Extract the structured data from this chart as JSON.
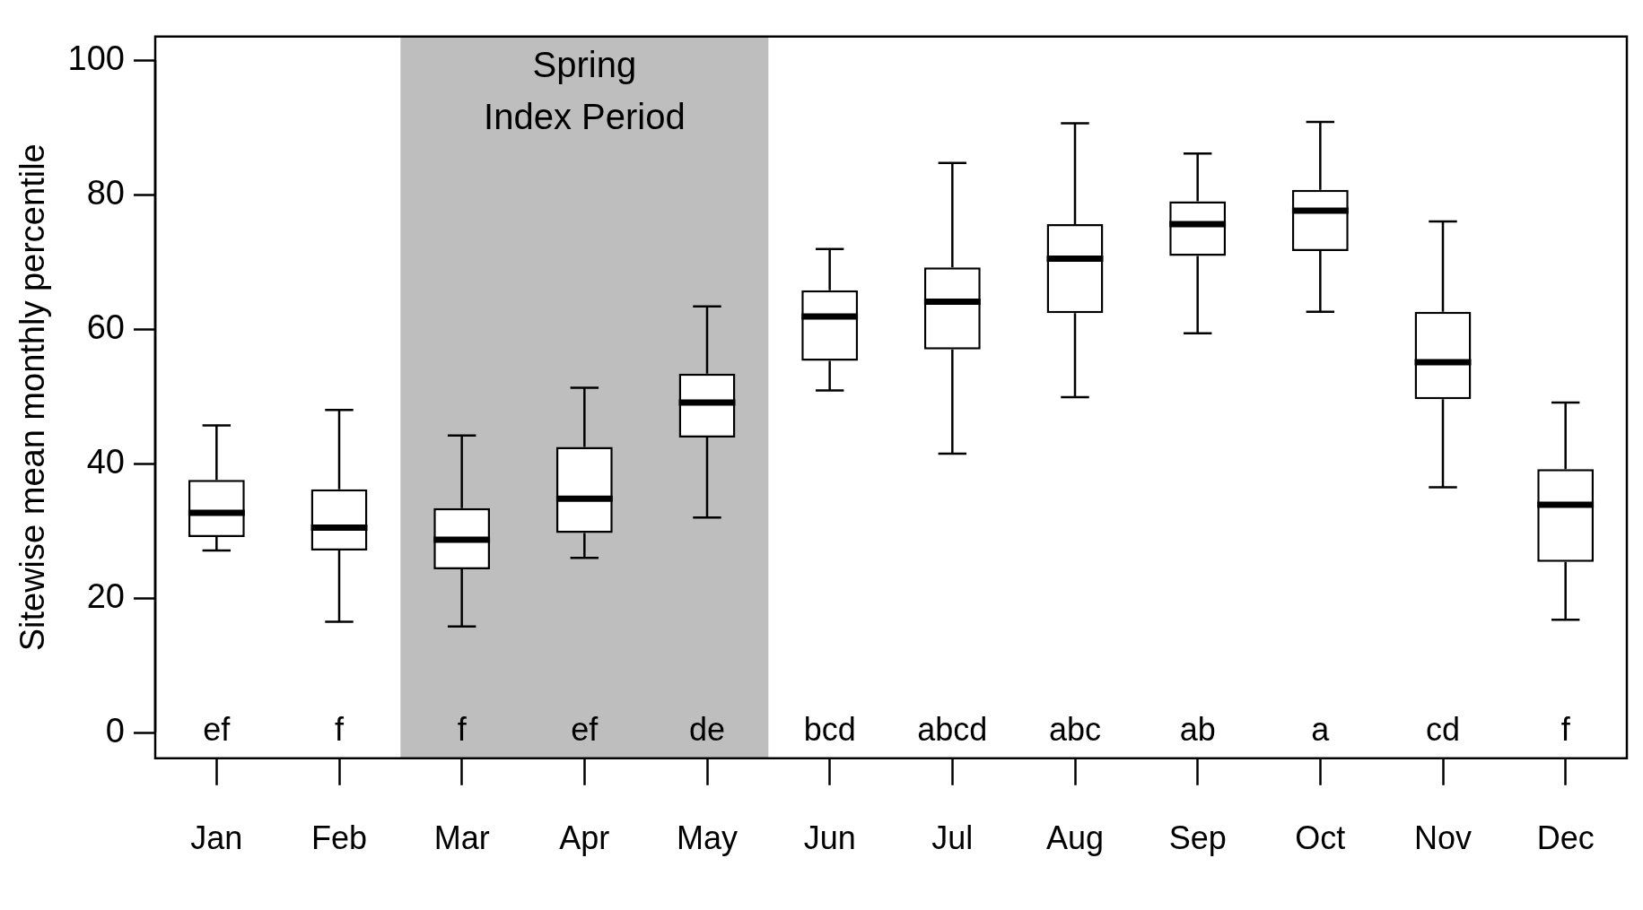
{
  "chart_data": {
    "type": "box",
    "ylabel": "Sitewise mean monthly percentile",
    "categories": [
      "Jan",
      "Feb",
      "Mar",
      "Apr",
      "May",
      "Jun",
      "Jul",
      "Aug",
      "Sep",
      "Oct",
      "Nov",
      "Dec"
    ],
    "boxes": [
      {
        "low": 27.1,
        "q1": 29.1,
        "median": 32.7,
        "q3": 37.6,
        "high": 45.7
      },
      {
        "low": 16.5,
        "q1": 27.1,
        "median": 30.5,
        "q3": 36.2,
        "high": 48
      },
      {
        "low": 15.8,
        "q1": 24.3,
        "median": 28.7,
        "q3": 33.4,
        "high": 44.2
      },
      {
        "low": 26,
        "q1": 29.7,
        "median": 34.8,
        "q3": 42.5,
        "high": 51.3
      },
      {
        "low": 32,
        "q1": 43.9,
        "median": 49.1,
        "q3": 53.4,
        "high": 63.4
      },
      {
        "low": 50.9,
        "q1": 55.3,
        "median": 61.9,
        "q3": 65.8,
        "high": 71.9
      },
      {
        "low": 41.5,
        "q1": 57,
        "median": 64.1,
        "q3": 69.2,
        "high": 84.7
      },
      {
        "low": 49.9,
        "q1": 62.4,
        "median": 70.5,
        "q3": 75.6,
        "high": 90.6
      },
      {
        "low": 59.4,
        "q1": 70.9,
        "median": 75.6,
        "q3": 79,
        "high": 86.1
      },
      {
        "low": 62.6,
        "q1": 71.6,
        "median": 77.6,
        "q3": 80.7,
        "high": 90.8
      },
      {
        "low": 36.5,
        "q1": 49.6,
        "median": 55.1,
        "q3": 62.6,
        "high": 76
      },
      {
        "low": 16.8,
        "q1": 25.4,
        "median": 33.9,
        "q3": 39.2,
        "high": 49.1
      }
    ],
    "color": "#000000",
    "ylim": [
      -3.8,
      103.5
    ],
    "yticks": [
      0,
      20,
      40,
      60,
      80,
      100
    ],
    "bands": [
      {
        "axis": "x",
        "from": "Mar",
        "to": "May",
        "label": "Spring\nIndex Period",
        "color": "#bebebe"
      }
    ],
    "annotations": [
      "ef",
      "f",
      "f",
      "ef",
      "de",
      "bcd",
      "abcd",
      "abc",
      "ab",
      "a",
      "cd",
      "f"
    ],
    "grid": false,
    "legend": false
  }
}
